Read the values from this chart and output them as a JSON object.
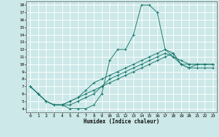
{
  "title": "",
  "xlabel": "Humidex (Indice chaleur)",
  "bg_color": "#cce8e8",
  "grid_color": "#ffffff",
  "line_color": "#1a7a6e",
  "xlim": [
    -0.5,
    23.5
  ],
  "ylim": [
    3.5,
    18.5
  ],
  "xticks": [
    0,
    1,
    2,
    3,
    4,
    5,
    6,
    7,
    8,
    9,
    10,
    11,
    12,
    13,
    14,
    15,
    16,
    17,
    18,
    19,
    20,
    21,
    22,
    23
  ],
  "yticks": [
    4,
    5,
    6,
    7,
    8,
    9,
    10,
    11,
    12,
    13,
    14,
    15,
    16,
    17,
    18
  ],
  "lines": [
    {
      "x": [
        0,
        1,
        2,
        3,
        4,
        5,
        6,
        7,
        8,
        9,
        10,
        11,
        12,
        13,
        14,
        15,
        16,
        17,
        18,
        19,
        20,
        21,
        22,
        23
      ],
      "y": [
        7,
        6,
        5,
        4.5,
        4.5,
        4,
        4,
        4,
        4.5,
        6,
        10.5,
        12,
        12,
        14,
        18,
        18,
        17,
        12,
        11.5,
        10,
        9.5,
        10,
        10,
        10
      ]
    },
    {
      "x": [
        0,
        1,
        2,
        3,
        4,
        5,
        6,
        7,
        8,
        9,
        10,
        11,
        12,
        13,
        14,
        15,
        16,
        17,
        18,
        19,
        20,
        21,
        22,
        23
      ],
      "y": [
        7,
        6,
        5,
        4.5,
        4.5,
        4.5,
        5,
        5.5,
        6,
        7,
        8,
        8.5,
        9,
        9.5,
        10,
        10.5,
        11,
        11.5,
        11,
        10.5,
        10,
        10,
        10,
        10
      ]
    },
    {
      "x": [
        0,
        1,
        2,
        3,
        4,
        5,
        6,
        7,
        8,
        9,
        10,
        11,
        12,
        13,
        14,
        15,
        16,
        17,
        18,
        19,
        20,
        21,
        22,
        23
      ],
      "y": [
        7,
        6,
        5,
        4.5,
        4.5,
        5,
        5.5,
        6.5,
        7.5,
        8,
        8.5,
        9,
        9.5,
        10,
        10.5,
        11,
        11.5,
        12,
        11,
        10,
        9.5,
        9.5,
        9.5,
        9.5
      ]
    },
    {
      "x": [
        0,
        1,
        2,
        3,
        4,
        5,
        6,
        7,
        8,
        9,
        10,
        11,
        12,
        13,
        14,
        15,
        16,
        17,
        18,
        19,
        20,
        21,
        22,
        23
      ],
      "y": [
        7,
        6,
        5,
        4.5,
        4.5,
        5,
        5.5,
        6,
        6.5,
        7,
        7.5,
        8,
        8.5,
        9,
        9.5,
        10,
        10.5,
        11,
        11.5,
        10,
        10,
        10,
        10,
        10
      ]
    }
  ]
}
